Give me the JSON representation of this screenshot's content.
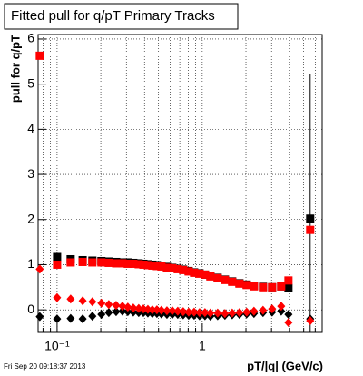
{
  "chart_data": {
    "type": "scatter",
    "title": "Fitted pull for q/pT  Primary Tracks",
    "x_label": "pT/|q| (GeV/c)",
    "y_label": "pull for q/pT",
    "footer": "Fri Sep 20 09:18:37 2013",
    "xlog": true,
    "grid": true,
    "xlim": [
      0.074,
      6.7
    ],
    "ylim": [
      -0.5,
      6.1
    ],
    "xticks": [
      {
        "value": 0.1,
        "label": "10⁻¹"
      },
      1
    ],
    "x_minor_ticks": [
      0.08,
      0.09,
      0.2,
      0.3,
      0.4,
      0.5,
      0.6,
      0.7,
      0.8,
      0.9,
      2,
      3,
      4,
      5,
      6
    ],
    "yticks": [
      0,
      1,
      2,
      3,
      4,
      5,
      6
    ],
    "x": [
      0.076,
      0.1,
      0.124,
      0.15,
      0.175,
      0.202,
      0.227,
      0.255,
      0.282,
      0.307,
      0.335,
      0.365,
      0.393,
      0.422,
      0.453,
      0.487,
      0.523,
      0.571,
      0.622,
      0.678,
      0.739,
      0.806,
      0.879,
      0.958,
      1.044,
      1.138,
      1.277,
      1.433,
      1.608,
      1.804,
      2.024,
      2.271,
      2.622,
      3.029,
      3.498,
      3.925,
      5.54
    ],
    "series": [
      {
        "color": "#000000",
        "marker": "square",
        "values": [
          null,
          1.17,
          1.12,
          1.1,
          1.09,
          1.08,
          1.07,
          1.06,
          1.05,
          1.05,
          1.04,
          1.03,
          1.02,
          1.01,
          1.0,
          0.99,
          0.97,
          0.95,
          0.93,
          0.91,
          0.89,
          0.86,
          0.83,
          0.81,
          0.78,
          0.75,
          0.71,
          0.67,
          0.63,
          0.59,
          0.56,
          0.53,
          0.51,
          0.5,
          0.52,
          0.48,
          2.02
        ],
        "errors": [
          null,
          null,
          null,
          null,
          null,
          null,
          null,
          null,
          null,
          null,
          null,
          null,
          null,
          null,
          null,
          null,
          null,
          null,
          null,
          null,
          null,
          null,
          null,
          null,
          null,
          null,
          null,
          null,
          null,
          null,
          null,
          null,
          null,
          null,
          null,
          null,
          3.2
        ]
      },
      {
        "color": "#ff0000",
        "marker": "square",
        "values": [
          5.63,
          1.0,
          1.05,
          1.06,
          1.05,
          1.05,
          1.04,
          1.03,
          1.03,
          1.02,
          1.02,
          1.01,
          1.0,
          0.99,
          0.98,
          0.97,
          0.96,
          0.93,
          0.92,
          0.9,
          0.88,
          0.85,
          0.82,
          0.8,
          0.78,
          0.74,
          0.7,
          0.66,
          0.62,
          0.58,
          0.55,
          0.52,
          0.5,
          0.5,
          0.52,
          0.65,
          1.77
        ]
      },
      {
        "color": "#000000",
        "marker": "diamond",
        "values": [
          -0.15,
          -0.2,
          -0.19,
          -0.2,
          -0.14,
          -0.1,
          -0.06,
          -0.04,
          -0.03,
          -0.04,
          -0.05,
          -0.06,
          -0.06,
          -0.07,
          -0.08,
          -0.08,
          -0.09,
          -0.1,
          -0.1,
          -0.1,
          -0.11,
          -0.12,
          -0.12,
          -0.13,
          -0.13,
          -0.14,
          -0.13,
          -0.12,
          -0.11,
          -0.1,
          -0.09,
          -0.08,
          -0.06,
          -0.05,
          -0.03,
          -0.1,
          -0.2
        ]
      },
      {
        "color": "#ff0000",
        "marker": "diamond",
        "values": [
          0.9,
          0.27,
          0.24,
          0.2,
          0.18,
          0.15,
          0.12,
          0.1,
          0.08,
          0.06,
          0.04,
          0.03,
          0.02,
          0.01,
          0.0,
          0.0,
          -0.01,
          -0.02,
          -0.02,
          -0.03,
          -0.04,
          -0.05,
          -0.05,
          -0.06,
          -0.06,
          -0.07,
          -0.07,
          -0.08,
          -0.07,
          -0.06,
          -0.05,
          -0.03,
          -0.01,
          0.02,
          0.08,
          -0.28,
          -0.24
        ]
      }
    ]
  }
}
